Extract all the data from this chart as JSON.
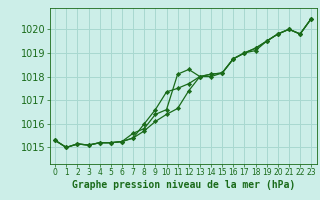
{
  "title": "Graphe pression niveau de la mer (hPa)",
  "bg_color": "#cceee8",
  "grid_color": "#a8d8d0",
  "line_color": "#1a6b1a",
  "marker_color": "#1a6b1a",
  "xlim": [
    -0.5,
    23.5
  ],
  "ylim": [
    1014.3,
    1020.9
  ],
  "yticks": [
    1015,
    1016,
    1017,
    1018,
    1019,
    1020
  ],
  "xticks": [
    0,
    1,
    2,
    3,
    4,
    5,
    6,
    7,
    8,
    9,
    10,
    11,
    12,
    13,
    14,
    15,
    16,
    17,
    18,
    19,
    20,
    21,
    22,
    23
  ],
  "series1": [
    1015.3,
    1015.0,
    1015.15,
    1015.1,
    1015.2,
    1015.2,
    1015.25,
    1015.6,
    1015.8,
    1016.4,
    1016.6,
    1018.1,
    1018.3,
    1018.0,
    1018.1,
    1018.15,
    1018.75,
    1019.0,
    1019.1,
    1019.5,
    1019.8,
    1020.0,
    1019.8,
    1020.45
  ],
  "series2": [
    1015.3,
    1015.0,
    1015.15,
    1015.1,
    1015.2,
    1015.2,
    1015.25,
    1015.4,
    1016.0,
    1016.6,
    1017.35,
    1017.5,
    1017.7,
    1018.0,
    1018.1,
    1018.15,
    1018.75,
    1019.0,
    1019.2,
    1019.5,
    1019.8,
    1020.0,
    1019.8,
    1020.45
  ],
  "series3": [
    1015.3,
    1015.0,
    1015.15,
    1015.1,
    1015.2,
    1015.2,
    1015.25,
    1015.4,
    1015.7,
    1016.1,
    1016.4,
    1016.65,
    1017.4,
    1018.0,
    1018.0,
    1018.15,
    1018.75,
    1019.0,
    1019.2,
    1019.5,
    1019.8,
    1020.0,
    1019.8,
    1020.45
  ],
  "ytick_fontsize": 7,
  "xtick_fontsize": 5.5,
  "xlabel_fontsize": 7,
  "linewidth": 0.9,
  "markersize": 2.2
}
